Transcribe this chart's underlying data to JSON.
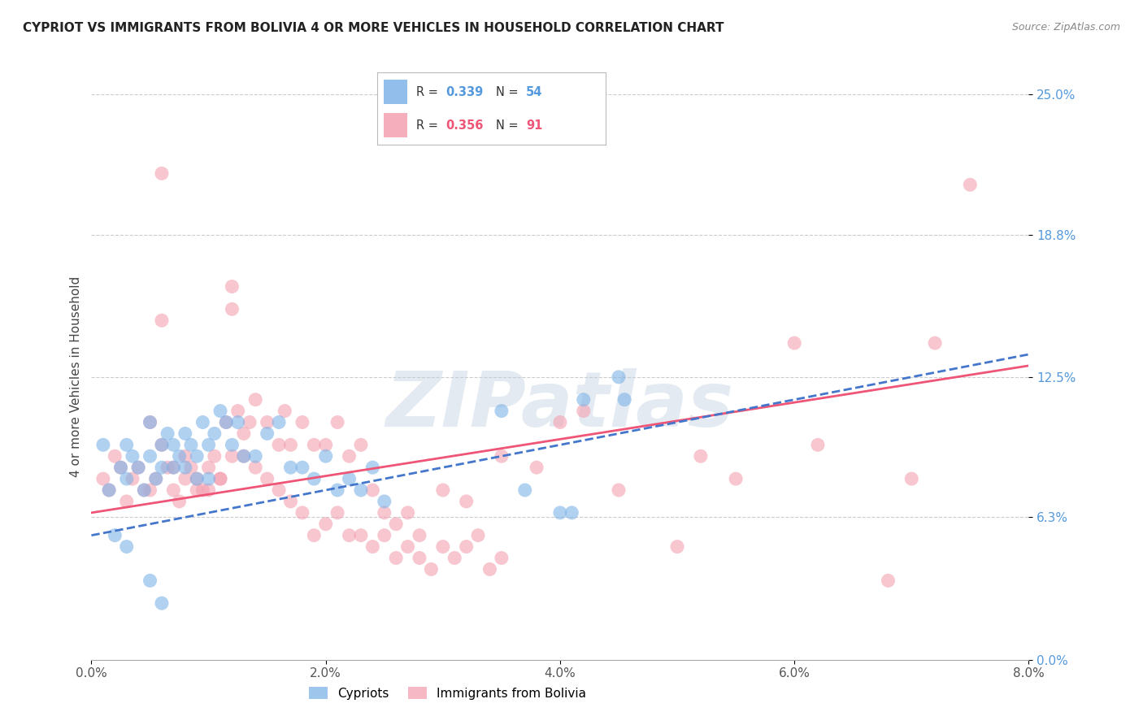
{
  "title": "CYPRIOT VS IMMIGRANTS FROM BOLIVIA 4 OR MORE VEHICLES IN HOUSEHOLD CORRELATION CHART",
  "source": "Source: ZipAtlas.com",
  "xlabel_values": [
    0.0,
    2.0,
    4.0,
    6.0,
    8.0
  ],
  "ylabel_values": [
    0.0,
    6.3,
    12.5,
    18.8,
    25.0
  ],
  "ylabel_label": "4 or more Vehicles in Household",
  "xlim": [
    0.0,
    8.0
  ],
  "ylim": [
    0.0,
    25.0
  ],
  "legend_label1": "Cypriots",
  "legend_label2": "Immigrants from Bolivia",
  "R1": "0.339",
  "N1": "54",
  "R2": "0.356",
  "N2": "91",
  "cypriot_color": "#7EB3E8",
  "bolivia_color": "#F4A0B0",
  "trend_blue": "#4477CC",
  "trend_pink": "#EE5577",
  "watermark": "ZIPatlas",
  "watermark_color": "#BBCCDD",
  "cypriot_x": [
    0.1,
    0.15,
    0.2,
    0.25,
    0.3,
    0.3,
    0.35,
    0.4,
    0.45,
    0.5,
    0.5,
    0.55,
    0.6,
    0.6,
    0.65,
    0.7,
    0.7,
    0.75,
    0.8,
    0.8,
    0.85,
    0.9,
    0.9,
    0.95,
    1.0,
    1.0,
    1.05,
    1.1,
    1.15,
    1.2,
    1.25,
    1.3,
    1.4,
    1.5,
    1.6,
    1.7,
    1.8,
    1.9,
    2.0,
    2.1,
    2.2,
    2.3,
    2.4,
    2.5,
    3.5,
    3.7,
    4.0,
    4.1,
    4.2,
    4.5,
    4.55,
    0.3,
    0.5,
    0.6
  ],
  "cypriot_y": [
    9.5,
    7.5,
    5.5,
    8.5,
    8.0,
    9.5,
    9.0,
    8.5,
    7.5,
    9.0,
    10.5,
    8.0,
    9.5,
    8.5,
    10.0,
    9.5,
    8.5,
    9.0,
    10.0,
    8.5,
    9.5,
    9.0,
    8.0,
    10.5,
    9.5,
    8.0,
    10.0,
    11.0,
    10.5,
    9.5,
    10.5,
    9.0,
    9.0,
    10.0,
    10.5,
    8.5,
    8.5,
    8.0,
    9.0,
    7.5,
    8.0,
    7.5,
    8.5,
    7.0,
    11.0,
    7.5,
    6.5,
    6.5,
    11.5,
    12.5,
    11.5,
    5.0,
    3.5,
    2.5
  ],
  "bolivia_x": [
    0.1,
    0.15,
    0.2,
    0.25,
    0.3,
    0.35,
    0.4,
    0.45,
    0.5,
    0.55,
    0.6,
    0.65,
    0.7,
    0.75,
    0.8,
    0.85,
    0.9,
    0.95,
    1.0,
    1.05,
    1.1,
    1.15,
    1.2,
    1.25,
    1.3,
    1.35,
    1.4,
    1.5,
    1.6,
    1.65,
    1.7,
    1.8,
    1.9,
    2.0,
    2.1,
    2.2,
    2.3,
    2.4,
    2.5,
    2.6,
    2.7,
    2.8,
    3.0,
    3.2,
    3.5,
    3.8,
    4.0,
    4.2,
    4.5,
    5.0,
    5.2,
    5.5,
    6.0,
    6.2,
    6.8,
    7.0,
    7.2,
    7.5,
    0.5,
    0.6,
    0.7,
    0.8,
    0.9,
    1.0,
    1.1,
    1.2,
    1.3,
    1.4,
    1.5,
    1.6,
    1.7,
    1.8,
    1.9,
    2.0,
    2.1,
    2.2,
    2.3,
    2.4,
    2.5,
    2.6,
    2.7,
    2.8,
    2.9,
    3.0,
    3.1,
    3.2,
    3.3,
    3.4,
    3.5,
    1.2,
    0.6
  ],
  "bolivia_y": [
    8.0,
    7.5,
    9.0,
    8.5,
    7.0,
    8.0,
    8.5,
    7.5,
    7.5,
    8.0,
    21.5,
    8.5,
    7.5,
    7.0,
    9.0,
    8.5,
    8.0,
    7.5,
    8.5,
    9.0,
    8.0,
    10.5,
    16.5,
    11.0,
    10.0,
    10.5,
    11.5,
    10.5,
    9.5,
    11.0,
    9.5,
    10.5,
    9.5,
    9.5,
    10.5,
    9.0,
    9.5,
    7.5,
    6.5,
    6.0,
    6.5,
    5.5,
    7.5,
    7.0,
    9.0,
    8.5,
    10.5,
    11.0,
    7.5,
    5.0,
    9.0,
    8.0,
    14.0,
    9.5,
    3.5,
    8.0,
    14.0,
    21.0,
    10.5,
    9.5,
    8.5,
    8.0,
    7.5,
    7.5,
    8.0,
    9.0,
    9.0,
    8.5,
    8.0,
    7.5,
    7.0,
    6.5,
    5.5,
    6.0,
    6.5,
    5.5,
    5.5,
    5.0,
    5.5,
    4.5,
    5.0,
    4.5,
    4.0,
    5.0,
    4.5,
    5.0,
    5.5,
    4.0,
    4.5,
    15.5,
    15.0
  ]
}
